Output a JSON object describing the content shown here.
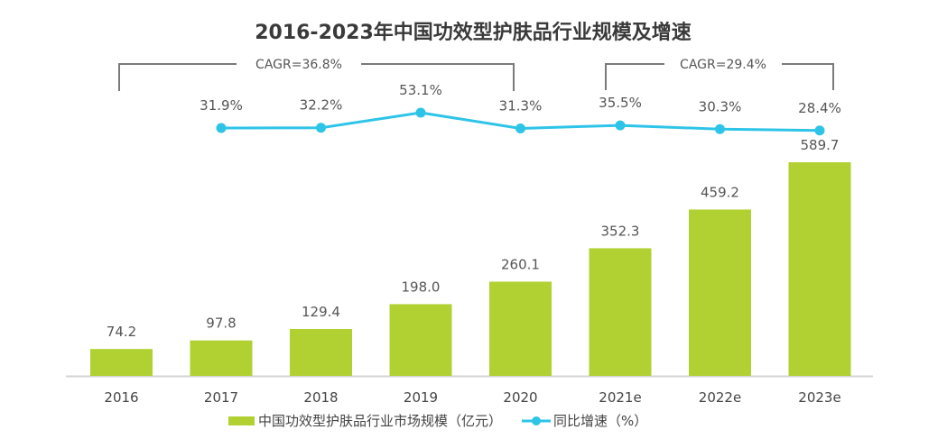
{
  "chart_data": {
    "type": "bar",
    "title": "2016-2023年中国功效型护肤品行业规模及增速",
    "categories": [
      "2016",
      "2017",
      "2018",
      "2019",
      "2020",
      "2021e",
      "2022e",
      "2023e"
    ],
    "series": [
      {
        "name": "中国功效型护肤品行业市场规模（亿元）",
        "type": "bar",
        "color": "#b1d132",
        "values": [
          74.2,
          97.8,
          129.4,
          198.0,
          260.1,
          352.3,
          459.2,
          589.7
        ],
        "labels": [
          "74.2",
          "97.8",
          "129.4",
          "198.0",
          "260.1",
          "352.3",
          "459.2",
          "589.7"
        ]
      },
      {
        "name": "同比增速（%）",
        "type": "line",
        "color": "#2ec4e8",
        "values": [
          null,
          31.9,
          32.2,
          53.1,
          31.3,
          35.5,
          30.3,
          28.4
        ],
        "labels": [
          "",
          "31.9%",
          "32.2%",
          "53.1%",
          "31.3%",
          "35.5%",
          "30.3%",
          "28.4%"
        ]
      }
    ],
    "annotations": [
      {
        "text": "CAGR=36.8%",
        "from": "2016",
        "to": "2020"
      },
      {
        "text": "CAGR=29.4%",
        "from": "2021e",
        "to": "2023e"
      }
    ],
    "legend": {
      "position": "bottom",
      "bar_label": "中国功效型护肤品行业市场规模（亿元）",
      "line_label": "同比增速（%）"
    },
    "ylim": [
      0,
      589.7
    ],
    "grid": false,
    "xlabel": "",
    "ylabel": ""
  }
}
